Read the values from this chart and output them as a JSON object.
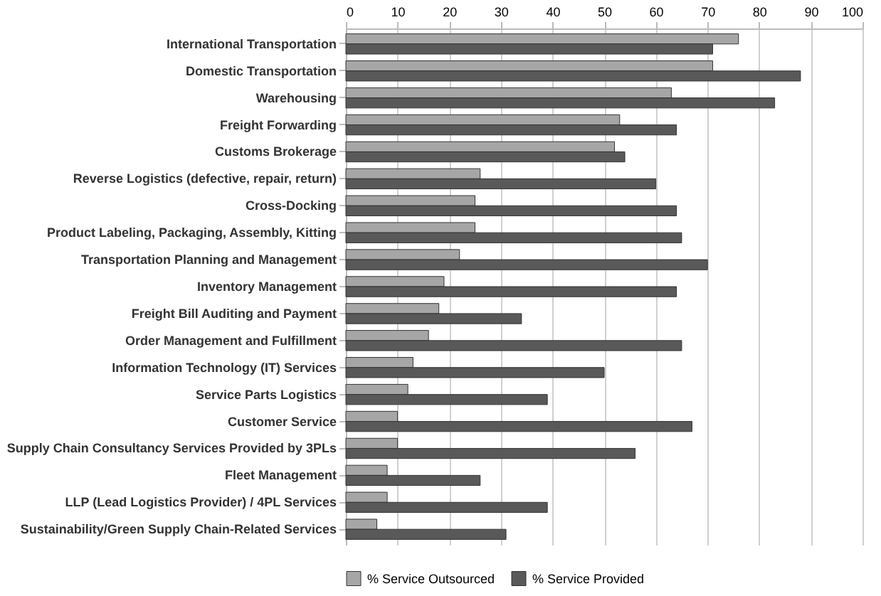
{
  "chart_data": {
    "type": "bar",
    "orientation": "horizontal",
    "categories": [
      "International Transportation",
      "Domestic Transportation",
      "Warehousing",
      "Freight Forwarding",
      "Customs Brokerage",
      "Reverse Logistics (defective, repair, return)",
      "Cross-Docking",
      "Product Labeling, Packaging, Assembly, Kitting",
      "Transportation Planning and Management",
      "Inventory Management",
      "Freight Bill Auditing and Payment",
      "Order Management and Fulfillment",
      "Information Technology (IT) Services",
      "Service Parts Logistics",
      "Customer Service",
      "Supply Chain Consultancy Services Provided by 3PLs",
      "Fleet Management",
      "LLP (Lead Logistics Provider) / 4PL Services",
      "Sustainability/Green Supply Chain-Related Services"
    ],
    "series": [
      {
        "name": "% Service Outsourced",
        "color": "#a6a6a6",
        "values": [
          76,
          71,
          63,
          53,
          52,
          26,
          25,
          25,
          22,
          19,
          18,
          16,
          13,
          12,
          10,
          10,
          8,
          8,
          6
        ]
      },
      {
        "name": "% Service Provided",
        "color": "#595959",
        "values": [
          71,
          88,
          83,
          64,
          54,
          60,
          64,
          65,
          70,
          64,
          34,
          65,
          50,
          39,
          67,
          56,
          26,
          39,
          31
        ]
      }
    ],
    "xlim": [
      0,
      100
    ],
    "xticks": [
      0,
      10,
      20,
      30,
      40,
      50,
      60,
      70,
      80,
      90,
      100
    ],
    "grid": "x",
    "legend": "bottom"
  }
}
